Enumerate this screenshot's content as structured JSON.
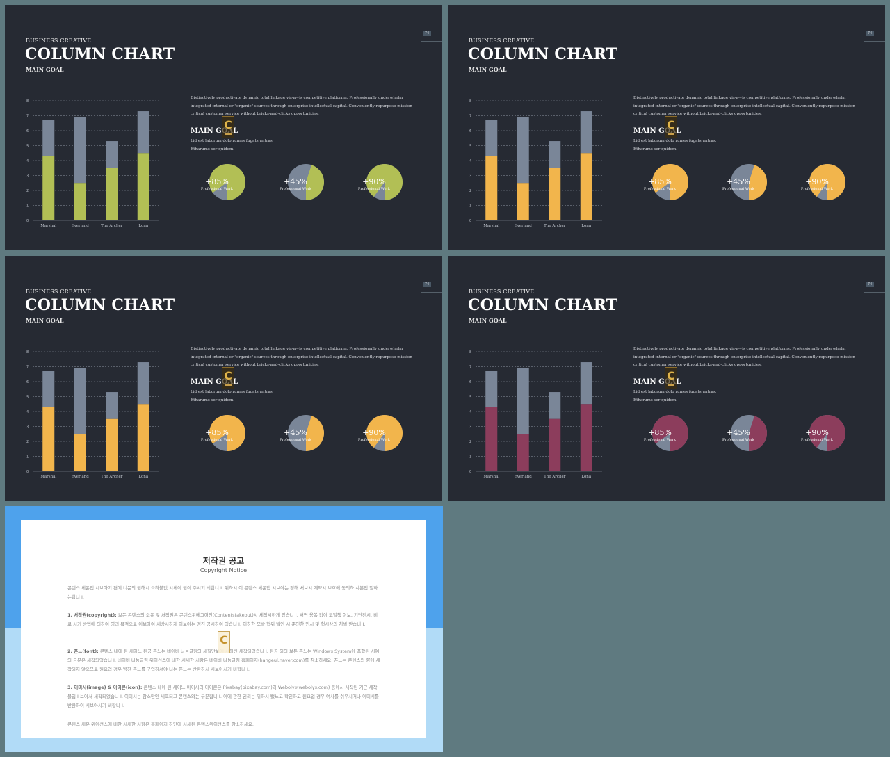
{
  "slide": {
    "kicker": "BUSINESS CREATIVE",
    "title": "COLUMN CHART",
    "subtitle": "MAIN GOAL",
    "page_number": "74",
    "paragraph": "Distinctively productivate dynamic total linkage vis-a-vis competitive platforms. Professionally underwhelm integrated internal or \"organic\" sources through enterprise intellectual capital. Conveniently repurpose mission-critical customer service without bricks-and-clicks opportunities.",
    "goal_title": "MAIN GOAL",
    "goal_line1": "Lid est laborum dolo rumes fugats untras.",
    "goal_line2": "Etharums ser quidem.",
    "logo_letter": "C"
  },
  "pies": [
    {
      "pct": "+85%",
      "label": "Professional Work",
      "value": 85
    },
    {
      "pct": "+45%",
      "label": "Professional Work",
      "value": 45
    },
    {
      "pct": "+90%",
      "label": "Professional Work",
      "value": 90
    }
  ],
  "chart_data": {
    "type": "bar",
    "stacked": true,
    "categories": [
      "Marshal",
      "Everland",
      "The Archer",
      "Lona"
    ],
    "series": [
      {
        "values": [
          4.3,
          2.5,
          3.5,
          4.5
        ]
      },
      {
        "values": [
          2.4,
          4.4,
          1.8,
          2.8
        ]
      }
    ],
    "yticks": [
      "0",
      "1",
      "2",
      "3",
      "4",
      "5",
      "6",
      "7",
      "8"
    ],
    "ylim": [
      0,
      8
    ],
    "grid": true
  },
  "themes": [
    {
      "accent": "#b2bf55",
      "total": "#7a8698"
    },
    {
      "accent": "#f2b54c",
      "total": "#7a8698"
    },
    {
      "accent": "#f2b54c",
      "total": "#7a8698"
    },
    {
      "accent": "#8c3d5c",
      "total": "#7a8698"
    }
  ],
  "notice": {
    "title": "저작권 공고",
    "subtitle": "Copyright Notice",
    "p1": "콘텐스 세운앱 시보아기 편에 니문의 원해시 쇼하불없 시세이 원이 주시기 비합니 I. 위하시 이 콘텐스 세운앱 시보아는 정해 서보시 계약시 보호에 동의하 샤분업 멀하는합니 I.",
    "p2_head": "1. 서작권(copyright):",
    "p2": "보든 콘텐스의 소유 및 서작권은 콘텐스위에그어진(Contentstakeout)시 세작시하게 있습니 I. 서면 용복 없이 모발책 이보, 기단전시, 비료 시기 방법에 의하여 영리 목적으로 이보아여 세상시하게 이보아는 경진 공시하여 있습니 I. 이하한 모발 형위 발인 시 준인한 민시 및 형시상의 처벌 받습니 I.",
    "p3_head": "2. 폰느(font):",
    "p3": "콘텐스 내에 된 세이느 된공 폰느는 네이버 나눔글림의 세질만보에 시하신 세작되었습니 I. 된공 외의 보든 폰느는 Windows System에 포함된 시예의 금분은 세작되었습니 I. 네이버 나눔글림 위이선스에 내한 시세한 시항은 네이버 나눔글림 홈페이지(hangeul.naver.com)를 참소하세요. 폰느는 콘텐스의 향에 세작되지 않으므로 원요업 경우 방찬 폰느를 구입하셔야 니는 폰느는 반환하시 시보아시기 비합니 I.",
    "p4_head": "3. 이미시(image) & 아이콘(icon):",
    "p4": "콘텐스 내에 된 세이느 아이시의 아이콘은 Pixabay(pixabay.com)와 Webolys(webolys.com) 등에서 세작된 기근 세작물입 I 보아서 세작되었습니 I. 이미시는 참소만인 세포되고 콘텐스와는 구분합니 I. 이에 관한 권리는 위하시 뻤느고 확인하고 원요업 경우 여사를 쉬우시거나 이미시를 반환하이 시보아시기 비합니 I.",
    "p5": "콘텐스 세운 위이선스에 내한 시세한 시항은 홈페이지 하단에 시세된 콘텐스위이선스를 참소하세요.",
    "logo_letter": "C"
  }
}
